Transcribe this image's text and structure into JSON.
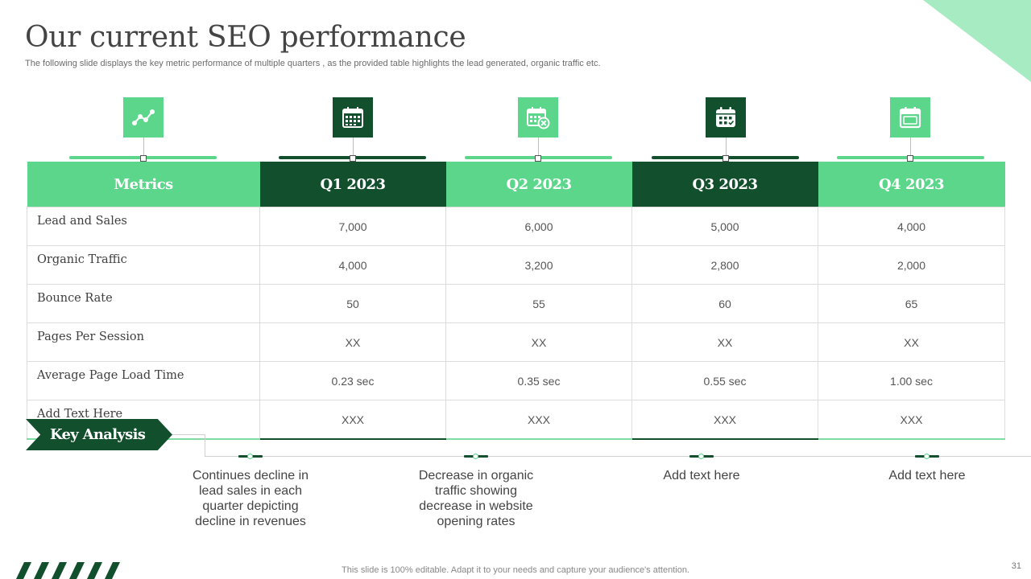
{
  "slide": {
    "title": "Our current SEO performance",
    "subtitle": "The following slide displays the key metric performance of multiple quarters , as the provided table highlights the lead generated, organic traffic etc.",
    "page_number": "31",
    "footer": "This slide is 100% editable. Adapt it to your needs and capture your audience's attention."
  },
  "colors": {
    "light_green": "#5bd68a",
    "dark_green": "#12502d",
    "corner_green": "#a6ebc2"
  },
  "icons": [
    "line-chart-icon",
    "calendar-grid-icon",
    "calendar-cancel-icon",
    "calendar-check-icon",
    "calendar-blank-icon"
  ],
  "table": {
    "headers": [
      "Metrics",
      "Q1 2023",
      "Q2 2023",
      "Q3 2023",
      "Q4 2023"
    ],
    "rows": [
      [
        "Lead and Sales",
        "7,000",
        "6,000",
        "5,000",
        "4,000"
      ],
      [
        "Organic Traffic",
        "4,000",
        "3,200",
        "2,800",
        "2,000"
      ],
      [
        "Bounce Rate",
        "50",
        "55",
        "60",
        "65"
      ],
      [
        "Pages Per Session",
        "XX",
        "XX",
        "XX",
        "XX"
      ],
      [
        "Average Page Load Time",
        "0.23 sec",
        "0.35 sec",
        "0.55 sec",
        "1.00 sec"
      ],
      [
        "Add Text Here",
        "XXX",
        "XXX",
        "XXX",
        "XXX"
      ]
    ]
  },
  "analysis": {
    "label": "Key Analysis",
    "items": [
      "Continues decline in lead sales in each quarter depicting decline in revenues",
      "Decrease in organic traffic showing decrease in website opening rates",
      "Add text here",
      "Add text here"
    ]
  }
}
